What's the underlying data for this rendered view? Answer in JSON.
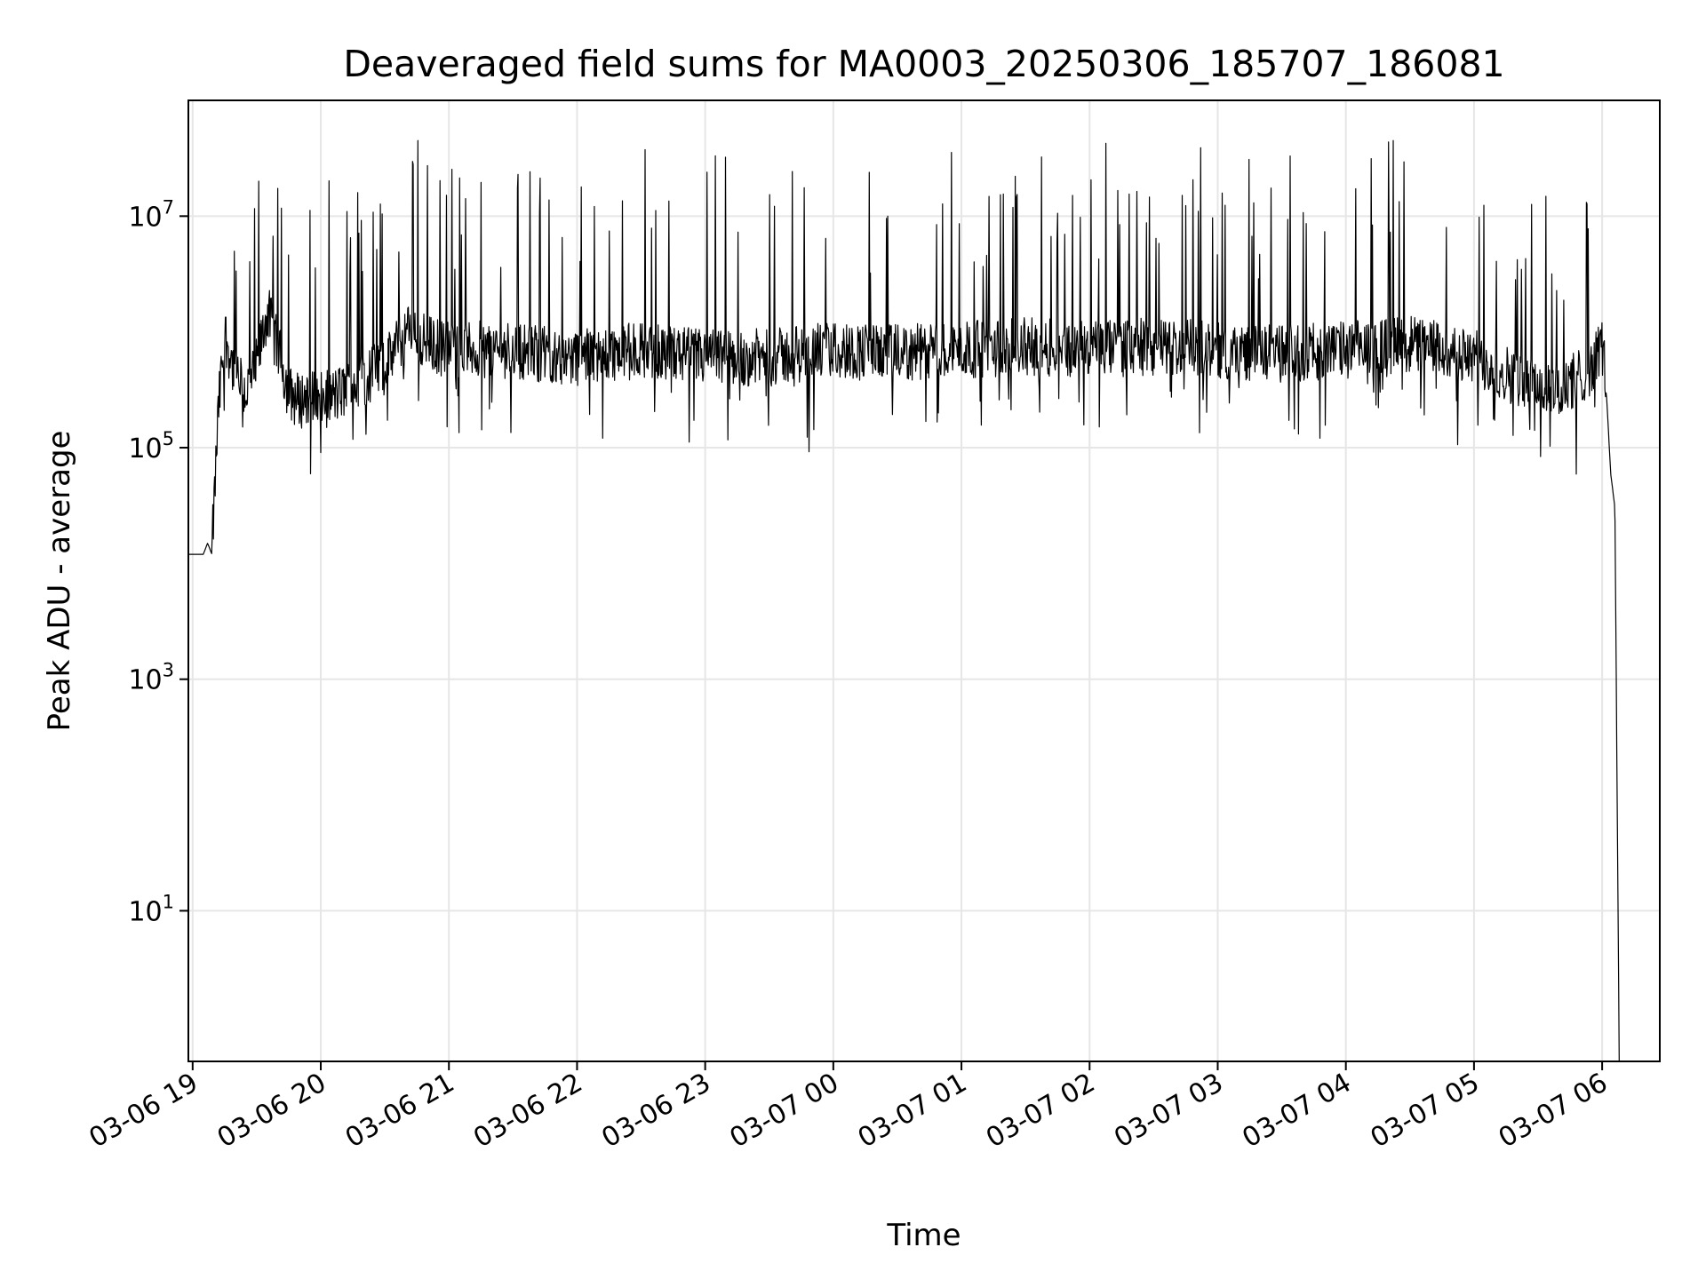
{
  "chart_data": {
    "type": "line",
    "title": "Deaveraged field sums for MA0003_20250306_185707_186081",
    "xlabel": "Time",
    "ylabel": "Peak ADU - average",
    "y_scale": "log",
    "ylim": [
      0.5,
      100000000
    ],
    "xlim": [
      "2025-03-06 18:58",
      "2025-03-07 06:27"
    ],
    "x_ticks": [
      {
        "value": "2025-03-06 19:00",
        "label": "03-06 19"
      },
      {
        "value": "2025-03-06 20:00",
        "label": "03-06 20"
      },
      {
        "value": "2025-03-06 21:00",
        "label": "03-06 21"
      },
      {
        "value": "2025-03-06 22:00",
        "label": "03-06 22"
      },
      {
        "value": "2025-03-06 23:00",
        "label": "03-06 23"
      },
      {
        "value": "2025-03-07 00:00",
        "label": "03-07 00"
      },
      {
        "value": "2025-03-07 01:00",
        "label": "03-07 01"
      },
      {
        "value": "2025-03-07 02:00",
        "label": "03-07 02"
      },
      {
        "value": "2025-03-07 03:00",
        "label": "03-07 03"
      },
      {
        "value": "2025-03-07 04:00",
        "label": "03-07 04"
      },
      {
        "value": "2025-03-07 05:00",
        "label": "03-07 05"
      },
      {
        "value": "2025-03-07 06:00",
        "label": "03-07 06"
      }
    ],
    "y_ticks": [
      {
        "value": 10,
        "base": "10",
        "exp": "1"
      },
      {
        "value": 1000,
        "base": "10",
        "exp": "3"
      },
      {
        "value": 100000,
        "base": "10",
        "exp": "5"
      },
      {
        "value": 10000000,
        "base": "10",
        "exp": "7"
      }
    ],
    "grid": true,
    "line_color": "#000000",
    "grid_color": "#e6e6e6",
    "series": [
      {
        "x": [
          "2025-03-06 18:58",
          "2025-03-06 19:05",
          "2025-03-06 19:07",
          "2025-03-06 19:09",
          "2025-03-06 19:12",
          "2025-03-06 19:15",
          "2025-03-06 19:20",
          "2025-03-06 19:25",
          "2025-03-06 19:30",
          "2025-03-06 19:35",
          "2025-03-06 19:40",
          "2025-03-06 19:45",
          "2025-03-06 19:50",
          "2025-03-06 19:55",
          "2025-03-06 20:00",
          "2025-03-06 20:10",
          "2025-03-06 20:20",
          "2025-03-06 20:30",
          "2025-03-06 20:40",
          "2025-03-06 20:50",
          "2025-03-06 21:00",
          "2025-03-06 21:30",
          "2025-03-06 22:00",
          "2025-03-06 22:30",
          "2025-03-06 23:00",
          "2025-03-06 23:30",
          "2025-03-07 00:00",
          "2025-03-07 00:30",
          "2025-03-07 01:00",
          "2025-03-07 01:30",
          "2025-03-07 02:00",
          "2025-03-07 02:30",
          "2025-03-07 03:00",
          "2025-03-07 03:30",
          "2025-03-07 04:00",
          "2025-03-07 04:30",
          "2025-03-07 05:00",
          "2025-03-07 05:20",
          "2025-03-07 05:40",
          "2025-03-07 05:55",
          "2025-03-07 06:00",
          "2025-03-07 06:02",
          "2025-03-07 06:04",
          "2025-03-07 06:06",
          "2025-03-07 06:08"
        ],
        "values": [
          12000,
          12000,
          15000,
          12000,
          200000,
          1000000,
          400000,
          300000,
          500000,
          1500000,
          700000,
          300000,
          250000,
          300000,
          250000,
          300000,
          400000,
          500000,
          1000000,
          800000,
          700000,
          700000,
          600000,
          700000,
          600000,
          600000,
          700000,
          650000,
          700000,
          750000,
          700000,
          750000,
          700000,
          650000,
          700000,
          800000,
          600000,
          400000,
          300000,
          500000,
          800000,
          300000,
          60000,
          30000,
          0.5
        ]
      }
    ]
  }
}
